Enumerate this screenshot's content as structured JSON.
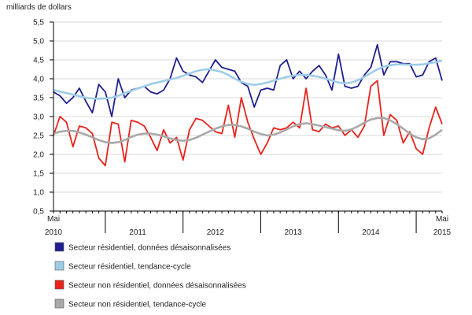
{
  "chart_data": {
    "type": "line",
    "ylabel": "milliards de dollars",
    "ylim": [
      0.5,
      5.5
    ],
    "yticks": [
      "0,5",
      "1,0",
      "1,5",
      "2,0",
      "2,5",
      "3,0",
      "3,5",
      "4,0",
      "4,5",
      "5,0",
      "5,5"
    ],
    "ytick_values": [
      0.5,
      1.0,
      1.5,
      2.0,
      2.5,
      3.0,
      3.5,
      4.0,
      4.5,
      5.0,
      5.5
    ],
    "x_start": "2010-05",
    "x_end": "2015-05",
    "x_top_labels": [
      {
        "text": "Mai",
        "period": "2010-05"
      },
      {
        "text": "Mai",
        "period": "2015-05"
      }
    ],
    "x_year_labels": [
      {
        "text": "2010",
        "period": "2010-05"
      },
      {
        "text": "2011",
        "period": "2011-06"
      },
      {
        "text": "2012",
        "period": "2012-06"
      },
      {
        "text": "2013",
        "period": "2013-06"
      },
      {
        "text": "2014",
        "period": "2014-06"
      },
      {
        "text": "2015",
        "period": "2015-05"
      }
    ],
    "year_boundaries": [
      "2011-01",
      "2012-01",
      "2013-01",
      "2014-01",
      "2015-01"
    ],
    "grid": true,
    "legend_position": "bottom",
    "series": [
      {
        "name": "Secteur résidentiel, données désaisonnalisées",
        "color": "#1f1f8f",
        "values": [
          3.65,
          3.55,
          3.35,
          3.5,
          3.75,
          3.4,
          3.1,
          3.85,
          3.65,
          3.0,
          4.0,
          3.5,
          3.7,
          3.75,
          3.8,
          3.65,
          3.6,
          3.7,
          4.0,
          4.55,
          4.2,
          4.1,
          4.05,
          3.9,
          4.2,
          4.5,
          4.3,
          4.25,
          4.2,
          3.9,
          3.8,
          3.25,
          3.7,
          3.75,
          3.7,
          4.35,
          4.5,
          4.0,
          4.2,
          4.0,
          4.2,
          4.35,
          4.1,
          3.7,
          4.65,
          3.8,
          3.75,
          3.8,
          4.1,
          4.3,
          4.9,
          4.1,
          4.45,
          4.45,
          4.4,
          4.4,
          4.05,
          4.1,
          4.45,
          4.55,
          3.95
        ]
      },
      {
        "name": "Secteur résidentiel, tendance-cycle",
        "color": "#9fcde8",
        "values": [
          3.7,
          3.66,
          3.62,
          3.58,
          3.54,
          3.5,
          3.48,
          3.47,
          3.48,
          3.5,
          3.55,
          3.62,
          3.68,
          3.74,
          3.8,
          3.86,
          3.9,
          3.94,
          3.98,
          4.02,
          4.08,
          4.14,
          4.2,
          4.24,
          4.25,
          4.22,
          4.18,
          4.1,
          4.0,
          3.92,
          3.86,
          3.84,
          3.86,
          3.9,
          3.95,
          4.0,
          4.05,
          4.08,
          4.1,
          4.1,
          4.08,
          4.05,
          4.0,
          3.95,
          3.9,
          3.88,
          3.9,
          3.96,
          4.05,
          4.15,
          4.25,
          4.32,
          4.36,
          4.38,
          4.38,
          4.37,
          4.37,
          4.38,
          4.41,
          4.44,
          4.48
        ]
      },
      {
        "name": "Secteur non résidentiel, données désaisonnalisées",
        "color": "#e8231c",
        "values": [
          2.5,
          3.0,
          2.85,
          2.2,
          2.75,
          2.7,
          2.55,
          1.9,
          1.7,
          2.85,
          2.8,
          1.8,
          2.9,
          2.85,
          2.75,
          2.45,
          2.1,
          2.65,
          2.3,
          2.45,
          1.85,
          2.65,
          2.95,
          2.9,
          2.75,
          2.6,
          2.55,
          3.3,
          2.45,
          3.5,
          2.85,
          2.4,
          2.0,
          2.3,
          2.7,
          2.65,
          2.7,
          2.85,
          2.7,
          3.75,
          2.65,
          2.6,
          2.8,
          2.7,
          2.75,
          2.5,
          2.65,
          2.45,
          2.75,
          3.8,
          3.95,
          2.5,
          3.05,
          2.9,
          2.3,
          2.6,
          2.15,
          2.0,
          2.7,
          3.25,
          2.8
        ]
      },
      {
        "name": "Secteur non résidentiel, tendance-cycle",
        "color": "#a9a9a9",
        "values": [
          2.55,
          2.6,
          2.62,
          2.62,
          2.58,
          2.52,
          2.45,
          2.38,
          2.32,
          2.3,
          2.32,
          2.38,
          2.46,
          2.52,
          2.55,
          2.55,
          2.52,
          2.48,
          2.42,
          2.38,
          2.36,
          2.38,
          2.44,
          2.52,
          2.6,
          2.68,
          2.74,
          2.78,
          2.78,
          2.74,
          2.68,
          2.6,
          2.54,
          2.5,
          2.52,
          2.58,
          2.66,
          2.74,
          2.8,
          2.82,
          2.8,
          2.76,
          2.72,
          2.68,
          2.64,
          2.62,
          2.66,
          2.74,
          2.84,
          2.92,
          2.96,
          2.96,
          2.9,
          2.8,
          2.68,
          2.55,
          2.45,
          2.4,
          2.42,
          2.52,
          2.65
        ]
      }
    ]
  }
}
